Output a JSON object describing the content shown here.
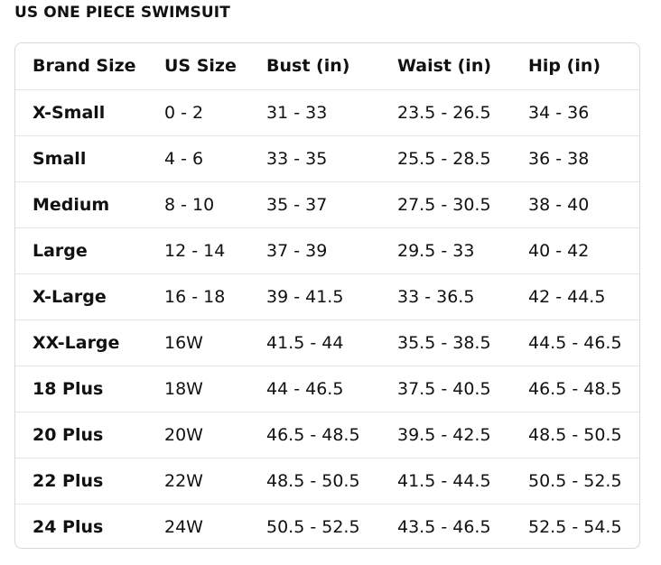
{
  "title": "US ONE PIECE SWIMSUIT",
  "table": {
    "headers": [
      "Brand Size",
      "US Size",
      "Bust (in)",
      "Waist (in)",
      "Hip (in)"
    ],
    "rows": [
      [
        "X-Small",
        "0 - 2",
        "31 - 33",
        "23.5 - 26.5",
        "34 - 36"
      ],
      [
        "Small",
        "4 - 6",
        "33 - 35",
        "25.5 - 28.5",
        "36 - 38"
      ],
      [
        "Medium",
        "8 - 10",
        "35 - 37",
        "27.5 - 30.5",
        "38 - 40"
      ],
      [
        "Large",
        "12 - 14",
        "37 - 39",
        "29.5 - 33",
        "40 - 42"
      ],
      [
        "X-Large",
        "16 - 18",
        "39 - 41.5",
        "33 - 36.5",
        "42 - 44.5"
      ],
      [
        "XX-Large",
        "16W",
        "41.5 - 44",
        "35.5 - 38.5",
        "44.5 - 46.5"
      ],
      [
        "18 Plus",
        "18W",
        "44 - 46.5",
        "37.5 - 40.5",
        "46.5 - 48.5"
      ],
      [
        "20 Plus",
        "20W",
        "46.5 - 48.5",
        "39.5 - 42.5",
        "48.5 - 50.5"
      ],
      [
        "22 Plus",
        "22W",
        "48.5 - 50.5",
        "41.5 - 44.5",
        "50.5 - 52.5"
      ],
      [
        "24 Plus",
        "24W",
        "50.5 - 52.5",
        "43.5 - 46.5",
        "52.5 - 54.5"
      ]
    ]
  }
}
